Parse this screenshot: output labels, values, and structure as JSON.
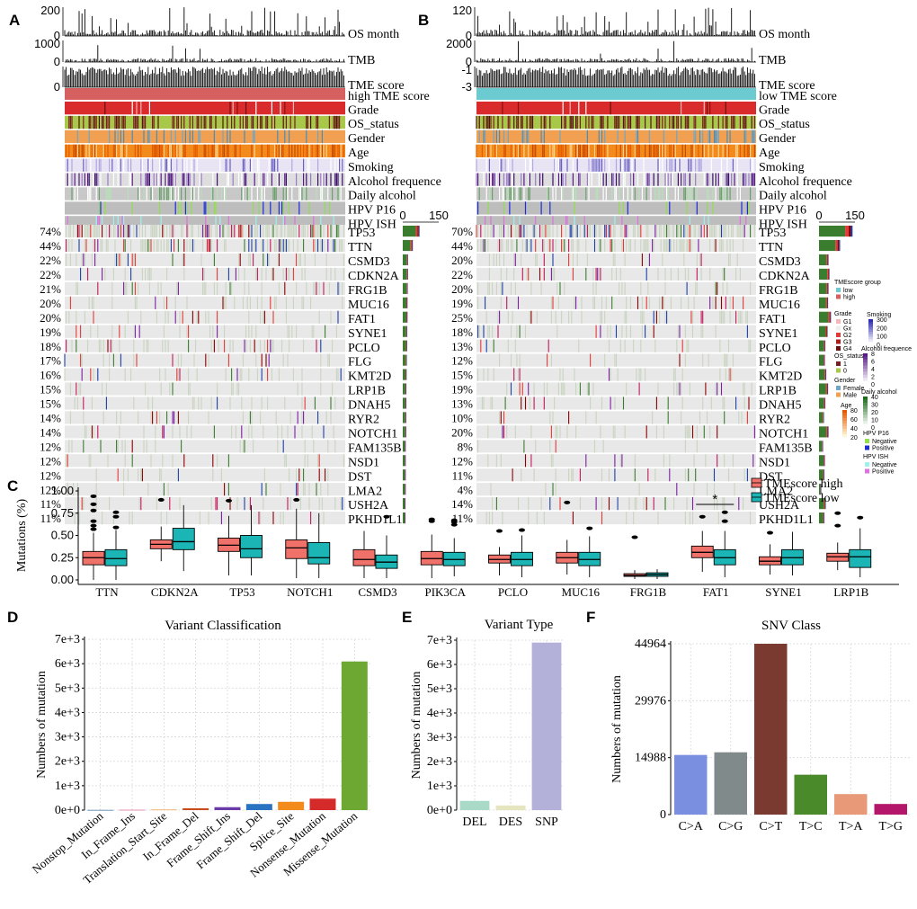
{
  "panel_letters": {
    "a": "A",
    "b": "B",
    "c": "C",
    "d": "D",
    "e": "E",
    "f": "F"
  },
  "oncoplot_A": {
    "tracks": {
      "os_month": {
        "label": "OS month",
        "ticks": [
          "200",
          "0"
        ],
        "max": 200
      },
      "tmb": {
        "label": "TMB",
        "ticks": [
          "1000",
          "0"
        ],
        "max": 1000
      },
      "tme_score": {
        "label": "TME score",
        "ticks": [
          "0"
        ]
      }
    },
    "group_label": "high TME score",
    "group_color": "#d65f5f",
    "annotation_labels": [
      "Grade",
      "OS_status",
      "Gender",
      "Age",
      "Smoking",
      "Alcohol frequence",
      "Daily alcohol",
      "HPV P16",
      "HPV ISH"
    ],
    "bar_axis_ticks": [
      "0",
      "150"
    ],
    "genes": [
      {
        "gene": "TP53",
        "pct": "74%",
        "count": 70
      },
      {
        "gene": "TTN",
        "pct": "44%",
        "count": 42
      },
      {
        "gene": "CSMD3",
        "pct": "22%",
        "count": 21
      },
      {
        "gene": "CDKN2A",
        "pct": "22%",
        "count": 21
      },
      {
        "gene": "FRG1B",
        "pct": "21%",
        "count": 20
      },
      {
        "gene": "MUC16",
        "pct": "20%",
        "count": 19
      },
      {
        "gene": "FAT1",
        "pct": "20%",
        "count": 19
      },
      {
        "gene": "SYNE1",
        "pct": "19%",
        "count": 18
      },
      {
        "gene": "PCLO",
        "pct": "18%",
        "count": 17
      },
      {
        "gene": "FLG",
        "pct": "17%",
        "count": 16
      },
      {
        "gene": "KMT2D",
        "pct": "16%",
        "count": 15
      },
      {
        "gene": "LRP1B",
        "pct": "15%",
        "count": 14
      },
      {
        "gene": "DNAH5",
        "pct": "15%",
        "count": 14
      },
      {
        "gene": "RYR2",
        "pct": "14%",
        "count": 13
      },
      {
        "gene": "NOTCH1",
        "pct": "14%",
        "count": 13
      },
      {
        "gene": "FAM135B",
        "pct": "12%",
        "count": 11
      },
      {
        "gene": "NSD1",
        "pct": "12%",
        "count": 11
      },
      {
        "gene": "DST",
        "pct": "12%",
        "count": 11
      },
      {
        "gene": "LMA2",
        "pct": "12%",
        "count": 11
      },
      {
        "gene": "USH2A",
        "pct": "11%",
        "count": 10
      },
      {
        "gene": "PKHD1L1",
        "pct": "11%",
        "count": 10
      }
    ]
  },
  "oncoplot_B": {
    "tracks": {
      "os_month": {
        "label": "OS month",
        "ticks": [
          "120",
          "0"
        ],
        "max": 120
      },
      "tmb": {
        "label": "TMB",
        "ticks": [
          "2000",
          "0"
        ],
        "max": 2000
      },
      "tme_score": {
        "label": "TME score",
        "ticks": [
          "-1",
          "-3"
        ]
      }
    },
    "group_label": "low TME score",
    "group_color": "#6ccbd0",
    "annotation_labels": [
      "Grade",
      "OS_status",
      "Gender",
      "Age",
      "Smoking",
      "Alcohol frequence",
      "Daily alcohol",
      "HPV P16",
      "HPV ISH"
    ],
    "bar_axis_ticks": [
      "0",
      "150"
    ],
    "genes": [
      {
        "gene": "TP53",
        "pct": "70%",
        "count": 140
      },
      {
        "gene": "TTN",
        "pct": "44%",
        "count": 88
      },
      {
        "gene": "CSMD3",
        "pct": "20%",
        "count": 40
      },
      {
        "gene": "CDKN2A",
        "pct": "22%",
        "count": 44
      },
      {
        "gene": "FRG1B",
        "pct": "20%",
        "count": 40
      },
      {
        "gene": "MUC16",
        "pct": "19%",
        "count": 38
      },
      {
        "gene": "FAT1",
        "pct": "25%",
        "count": 50
      },
      {
        "gene": "SYNE1",
        "pct": "18%",
        "count": 36
      },
      {
        "gene": "PCLO",
        "pct": "13%",
        "count": 26
      },
      {
        "gene": "FLG",
        "pct": "12%",
        "count": 24
      },
      {
        "gene": "KMT2D",
        "pct": "15%",
        "count": 30
      },
      {
        "gene": "LRP1B",
        "pct": "19%",
        "count": 38
      },
      {
        "gene": "DNAH5",
        "pct": "13%",
        "count": 26
      },
      {
        "gene": "RYR2",
        "pct": "10%",
        "count": 20
      },
      {
        "gene": "NOTCH1",
        "pct": "20%",
        "count": 40
      },
      {
        "gene": "FAM135B",
        "pct": "8%",
        "count": 16
      },
      {
        "gene": "NSD1",
        "pct": "12%",
        "count": 24
      },
      {
        "gene": "DST",
        "pct": "11%",
        "count": 22
      },
      {
        "gene": "LMA2",
        "pct": "4%",
        "count": 8
      },
      {
        "gene": "USH2A",
        "pct": "14%",
        "count": 28
      },
      {
        "gene": "PKHD1L1",
        "pct": "11%",
        "count": 22
      }
    ]
  },
  "legend": {
    "tme_group": {
      "title": "TMEscore group",
      "items": [
        {
          "label": "low",
          "color": "#6ccbd0"
        },
        {
          "label": "high",
          "color": "#d65f5f"
        }
      ]
    },
    "grade": {
      "title": "Grade",
      "items": [
        {
          "label": "G1",
          "color": "#f4b6b6"
        },
        {
          "label": "Gx",
          "color": "#eeeeee"
        },
        {
          "label": "G2",
          "color": "#e23a3a"
        },
        {
          "label": "G3",
          "color": "#b01c1c"
        },
        {
          "label": "G4",
          "color": "#6b0f0f"
        }
      ]
    },
    "os_status": {
      "title": "OS_status",
      "items": [
        {
          "label": "1",
          "color": "#7a1f1f"
        },
        {
          "label": "0",
          "color": "#a8c84a"
        }
      ]
    },
    "gender": {
      "title": "Gender",
      "items": [
        {
          "label": "Female",
          "color": "#6fa6c8"
        },
        {
          "label": "Male",
          "color": "#f0a050"
        }
      ]
    },
    "age": {
      "title": "Age",
      "ticks": [
        "80",
        "60",
        "40",
        "20"
      ],
      "colors": [
        "#e85c00",
        "#fff5d6"
      ]
    },
    "smoking": {
      "title": "Smoking",
      "ticks": [
        "300",
        "200",
        "100",
        "0"
      ],
      "colors": [
        "#2b2bb8",
        "#ffffff"
      ]
    },
    "alcohol_freq": {
      "title": "Alcohol frequence",
      "ticks": [
        "8",
        "6",
        "4",
        "2",
        "0"
      ],
      "colors": [
        "#5a1a8a",
        "#ffffff"
      ]
    },
    "daily_alcohol": {
      "title": "Daily alcohol",
      "ticks": [
        "40",
        "30",
        "20",
        "10",
        "0"
      ],
      "colors": [
        "#1a6e1a",
        "#ffffff"
      ]
    },
    "hpv_p16": {
      "title": "HPV P16",
      "items": [
        {
          "label": "Negative",
          "color": "#8fe04a"
        },
        {
          "label": "Positive",
          "color": "#1c2cd6"
        }
      ]
    },
    "hpv_ish": {
      "title": "HPV ISH",
      "items": [
        {
          "label": "Negative",
          "color": "#a0f0f0"
        },
        {
          "label": "Positive",
          "color": "#e070e0"
        }
      ]
    }
  },
  "mutation_colors": [
    "#3a7d2e",
    "#1c3fa8",
    "#c2185b",
    "#7b1fa2",
    "#e53935",
    "#8b0000"
  ],
  "chart_data": [
    {
      "panel": "C",
      "type": "box",
      "ylabel": "Mutations (%)",
      "ylim": [
        0,
        1.0
      ],
      "yticks": [
        "0.00",
        "0.25",
        "0.50",
        "0.75",
        "1.00"
      ],
      "categories": [
        "TTN",
        "CDKN2A",
        "TP53",
        "NOTCH1",
        "CSMD3",
        "PIK3CA",
        "PCLO",
        "MUC16",
        "FRG1B",
        "FAT1",
        "SYNE1",
        "LRP1B"
      ],
      "series": [
        {
          "name": "TMEscore high",
          "color": "#f0716a",
          "boxes": [
            [
              0,
              0.17,
              0.25,
              0.32,
              0.53
            ],
            [
              0.21,
              0.35,
              0.4,
              0.45,
              0.6
            ],
            [
              0.05,
              0.32,
              0.39,
              0.47,
              0.72
            ],
            [
              0.02,
              0.24,
              0.36,
              0.45,
              0.8
            ],
            [
              0.02,
              0.16,
              0.23,
              0.34,
              0.55
            ],
            [
              0.02,
              0.17,
              0.24,
              0.32,
              0.51
            ],
            [
              0.05,
              0.19,
              0.23,
              0.28,
              0.37
            ],
            [
              0.06,
              0.19,
              0.25,
              0.31,
              0.45
            ],
            [
              0.01,
              0.04,
              0.05,
              0.07,
              0.11
            ],
            [
              0.09,
              0.25,
              0.31,
              0.38,
              0.55
            ],
            [
              0.06,
              0.17,
              0.21,
              0.26,
              0.4
            ],
            [
              0.11,
              0.21,
              0.26,
              0.3,
              0.42
            ]
          ],
          "outliers": [
            [
              0.57,
              0.61,
              0.66,
              0.78,
              0.85,
              0.94
            ],
            [
              0.9
            ],
            [
              0.89
            ],
            [
              0.9
            ],
            [],
            [
              0.66,
              0.68
            ],
            [
              0.55
            ],
            [
              0.87
            ],
            [
              0.48
            ],
            [
              0.71
            ],
            [
              0.53
            ],
            [
              0.61,
              0.75
            ]
          ]
        },
        {
          "name": "TMEscore low",
          "color": "#1cb5b5",
          "boxes": [
            [
              0,
              0.16,
              0.24,
              0.34,
              0.56
            ],
            [
              0.1,
              0.34,
              0.43,
              0.58,
              0.84
            ],
            [
              0.05,
              0.25,
              0.35,
              0.5,
              0.84
            ],
            [
              0.02,
              0.18,
              0.25,
              0.42,
              0.75
            ],
            [
              0.02,
              0.13,
              0.2,
              0.28,
              0.5
            ],
            [
              0.04,
              0.16,
              0.23,
              0.31,
              0.47
            ],
            [
              0.03,
              0.16,
              0.23,
              0.31,
              0.5
            ],
            [
              0.03,
              0.16,
              0.23,
              0.31,
              0.49
            ],
            [
              0.01,
              0.04,
              0.06,
              0.08,
              0.12
            ],
            [
              0.03,
              0.17,
              0.25,
              0.34,
              0.55
            ],
            [
              0.05,
              0.17,
              0.25,
              0.34,
              0.54
            ],
            [
              0.03,
              0.14,
              0.26,
              0.34,
              0.58
            ]
          ],
          "outliers": [
            [
              0.59,
              0.71,
              0.76
            ],
            [],
            [],
            [],
            [
              0.71
            ],
            [
              0.62,
              0.65,
              0.67
            ],
            [
              0.56
            ],
            [
              0.58
            ],
            [],
            [
              0.66,
              0.76
            ],
            [],
            [
              0.7
            ]
          ]
        }
      ],
      "annotations": [
        {
          "label": "*",
          "category": "FAT1"
        }
      ]
    },
    {
      "panel": "D",
      "type": "bar",
      "title": "Variant Classification",
      "ylabel": "Numbers of mutation",
      "ylim": [
        0,
        7000
      ],
      "yticks": [
        "0e+0",
        "1e+3",
        "2e+3",
        "3e+3",
        "4e+3",
        "5e+3",
        "6e+3",
        "7e+3"
      ],
      "categories": [
        "Nonstop_Mutation",
        "In_Frame_Ins",
        "Translation_Start_Site",
        "In_Frame_Del",
        "Frame_Shift_Ins",
        "Frame_Shift_Del",
        "Splice_Site",
        "Nonsense_Mutation",
        "Missense_Mutation"
      ],
      "values": [
        8,
        15,
        25,
        75,
        120,
        250,
        340,
        470,
        6090
      ],
      "colors": [
        "#4a7ea8",
        "#e07a9a",
        "#f2a65a",
        "#c84c1c",
        "#6a3aa8",
        "#2a72c2",
        "#f28a1c",
        "#d42a2a",
        "#6ca832"
      ]
    },
    {
      "panel": "E",
      "type": "bar",
      "title": "Variant Type",
      "ylabel": "Numbers of mutation",
      "ylim": [
        0,
        7000
      ],
      "yticks": [
        "0e+0",
        "1e+3",
        "2e+3",
        "3e+3",
        "4e+3",
        "5e+3",
        "6e+3",
        "7e+3"
      ],
      "categories": [
        "DEL",
        "DES",
        "SNP"
      ],
      "values": [
        380,
        190,
        6900
      ],
      "colors": [
        "#a9d9c7",
        "#e5e5c0",
        "#b3b0d9"
      ]
    },
    {
      "panel": "F",
      "type": "bar",
      "title": "SNV Class",
      "ylabel": "Numbers of mutation",
      "ylim": [
        0,
        44964
      ],
      "yticks": [
        "0",
        "14988",
        "29976",
        "44964"
      ],
      "categories": [
        "C>A",
        "C>G",
        "C>T",
        "T>C",
        "T>A",
        "T>G"
      ],
      "values": [
        15700,
        16400,
        44964,
        10500,
        5400,
        2800
      ],
      "colors": [
        "#7b8fe0",
        "#818a8a",
        "#7a3a30",
        "#4a8a2a",
        "#e89a78",
        "#b4176a"
      ]
    }
  ]
}
